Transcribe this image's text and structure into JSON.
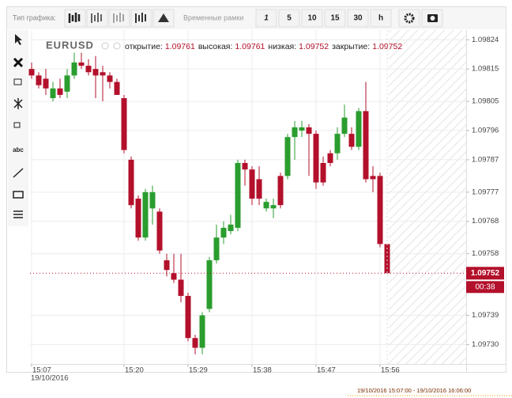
{
  "toolbar": {
    "chart_type_label": "Тип графика:",
    "timeframe_label": "Временные рамки",
    "timeframes": [
      "1",
      "5",
      "10",
      "15",
      "30",
      "h"
    ]
  },
  "tools": {
    "text_tool": "abc"
  },
  "chart_data": {
    "type": "candlestick",
    "symbol": "EURUSD",
    "info_labels": [
      "открытие:",
      "высокая:",
      "низкая:",
      "закрытие:"
    ],
    "categories": [
      "15:07",
      null,
      null,
      null,
      null,
      null,
      null,
      null,
      null,
      null,
      null,
      null,
      null,
      "15:20",
      null,
      null,
      null,
      null,
      null,
      null,
      null,
      null,
      "15:29",
      null,
      null,
      null,
      null,
      null,
      null,
      null,
      null,
      "15:38",
      null,
      null,
      null,
      null,
      null,
      null,
      null,
      null,
      "15:47",
      null,
      null,
      null,
      null,
      null,
      null,
      null,
      null,
      "15:56",
      null
    ],
    "open": [
      1.09815,
      1.09813,
      1.09812,
      1.09806,
      1.09809,
      1.09808,
      1.09813,
      1.09817,
      1.09816,
      1.09815,
      1.09814,
      1.09813,
      1.09811,
      1.09806,
      1.09787,
      1.09775,
      1.09763,
      1.09772,
      1.09771,
      1.09756,
      1.09752,
      1.0975,
      1.09745,
      1.09732,
      1.09729,
      1.09741,
      1.09756,
      1.09763,
      1.09765,
      1.09766,
      1.09786,
      1.09784,
      1.09781,
      1.09772,
      1.09772,
      1.09782,
      1.09782,
      1.09794,
      1.09796,
      1.09797,
      1.09795,
      1.09786,
      1.09789,
      1.09789,
      1.09795,
      1.09795,
      1.09791,
      1.09802,
      1.09782,
      1.09782,
      1.09761
    ],
    "high": [
      1.09817,
      1.09814,
      1.09815,
      1.09811,
      1.09812,
      1.09815,
      1.0982,
      1.0982,
      1.09818,
      1.09819,
      1.09816,
      1.09814,
      1.09812,
      1.09807,
      1.09788,
      1.09776,
      1.09778,
      1.09779,
      1.09772,
      1.09758,
      1.09758,
      1.09758,
      1.09746,
      1.09733,
      1.0974,
      1.09757,
      1.09767,
      1.09768,
      1.0977,
      1.09787,
      1.09787,
      1.09785,
      1.09785,
      1.09775,
      1.09775,
      1.09783,
      1.09795,
      1.09799,
      1.09799,
      1.09798,
      1.09796,
      1.09788,
      1.0979,
      1.09797,
      1.09804,
      1.09797,
      1.09803,
      1.09811,
      1.09785,
      1.09783,
      1.09761
    ],
    "low": [
      1.09812,
      1.09809,
      1.09807,
      1.09805,
      1.09806,
      1.09806,
      1.09812,
      1.09815,
      1.09813,
      1.09806,
      1.09805,
      1.09809,
      1.09807,
      1.09789,
      1.09772,
      1.09762,
      1.09762,
      1.09767,
      1.09758,
      1.09751,
      1.09749,
      1.09743,
      1.09731,
      1.09727,
      1.09727,
      1.0974,
      1.09755,
      1.09761,
      1.09764,
      1.09765,
      1.09779,
      1.09773,
      1.09773,
      1.09771,
      1.09769,
      1.09772,
      1.09781,
      1.09787,
      1.09794,
      1.09782,
      1.09778,
      1.09779,
      1.09785,
      1.09787,
      1.09794,
      1.0979,
      1.0979,
      1.0978,
      1.09777,
      1.0976,
      1.09752
    ],
    "close": [
      1.09813,
      1.0981,
      1.09809,
      1.09809,
      1.09807,
      1.09813,
      1.09817,
      1.09816,
      1.09814,
      1.09813,
      1.09813,
      1.09811,
      1.09807,
      1.0979,
      1.09773,
      1.09763,
      1.09777,
      1.09777,
      1.09759,
      1.09753,
      1.0975,
      1.09745,
      1.09732,
      1.09729,
      1.09739,
      1.09756,
      1.09763,
      1.09766,
      1.09767,
      1.09786,
      1.09784,
      1.09775,
      1.09775,
      1.09774,
      1.09773,
      1.09773,
      1.09794,
      1.09797,
      1.09797,
      1.09795,
      1.0978,
      1.0978,
      1.09786,
      1.09795,
      1.098,
      1.09791,
      1.09802,
      1.09781,
      1.09781,
      1.09761,
      1.09752
    ],
    "up_color": "#2a9d2e",
    "down_color": "#b3102b",
    "ylim": [
      1.09724,
      1.09827
    ],
    "yticks": [
      1.09824,
      1.09815,
      1.09805,
      1.09796,
      1.09787,
      1.09777,
      1.09768,
      1.09758,
      1.09739,
      {
        "value": 1.0973,
        "label": "1.09730"
      }
    ],
    "grid": true,
    "countdown": "00:38",
    "date": "19/10/2016",
    "range": "19/10/2016 15:07:00 - 19/10/2016 16:06:00"
  }
}
